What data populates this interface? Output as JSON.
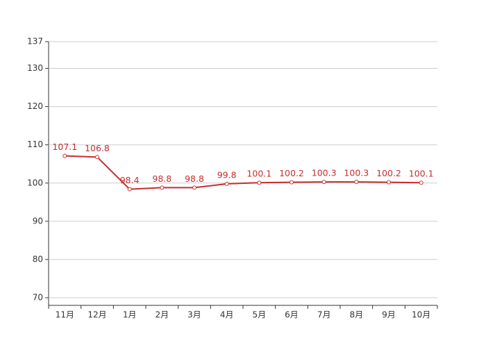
{
  "chart_data": {
    "type": "line",
    "categories": [
      "11月",
      "12月",
      "1月",
      "2月",
      "3月",
      "4月",
      "5月",
      "6月",
      "7月",
      "8月",
      "9月",
      "10月"
    ],
    "values": [
      107.1,
      106.8,
      98.4,
      98.8,
      98.8,
      99.8,
      100.1,
      100.2,
      100.3,
      100.3,
      100.2,
      100.1
    ],
    "color": "#c62d2d",
    "ylim": [
      68,
      137
    ],
    "yticks": [
      70,
      80,
      90,
      100,
      110,
      120,
      130,
      137
    ],
    "grid": true
  }
}
